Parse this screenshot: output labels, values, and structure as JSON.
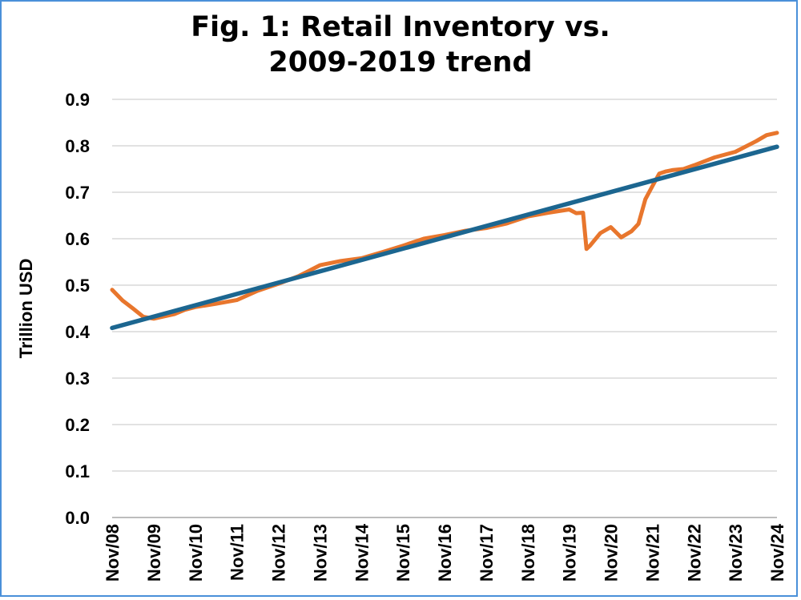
{
  "chart_data": {
    "type": "line",
    "title_lines": [
      "Fig. 1: Retail Inventory vs.",
      "2009-2019 trend"
    ],
    "ylabel": "Trillion USD",
    "xlabel": "",
    "ylim": [
      0,
      0.9
    ],
    "y_ticks": [
      "0.0",
      "0.1",
      "0.2",
      "0.3",
      "0.4",
      "0.5",
      "0.6",
      "0.7",
      "0.8",
      "0.9"
    ],
    "x_ticks": [
      "Nov/08",
      "Nov/09",
      "Nov/10",
      "Nov/11",
      "Nov/12",
      "Nov/13",
      "Nov/14",
      "Nov/15",
      "Nov/16",
      "Nov/17",
      "Nov/18",
      "Nov/19",
      "Nov/20",
      "Nov/21",
      "Nov/22",
      "Nov/23",
      "Nov/24"
    ],
    "grid": true,
    "legend": "none",
    "series": [
      {
        "color": "#e8762d",
        "x": [
          "Nov/08",
          "Feb/09",
          "May/09",
          "Aug/09",
          "Nov/09",
          "Feb/10",
          "May/10",
          "Aug/10",
          "Nov/10",
          "May/11",
          "Nov/11",
          "May/12",
          "Nov/12",
          "May/13",
          "Nov/13",
          "May/14",
          "Nov/14",
          "May/15",
          "Nov/15",
          "May/16",
          "Nov/16",
          "May/17",
          "Nov/17",
          "May/18",
          "Nov/18",
          "May/19",
          "Nov/19",
          "Jan/20",
          "Mar/20",
          "Apr/20",
          "May/20",
          "Aug/20",
          "Nov/20",
          "Feb/21",
          "May/21",
          "Jul/21",
          "Sep/21",
          "Nov/21",
          "Jan/22",
          "Mar/22",
          "May/22",
          "Aug/22",
          "Nov/22",
          "May/23",
          "Nov/23",
          "May/24",
          "Aug/24",
          "Nov/24"
        ],
        "values": [
          0.49,
          0.467,
          0.45,
          0.432,
          0.428,
          0.433,
          0.438,
          0.447,
          0.453,
          0.46,
          0.468,
          0.488,
          0.503,
          0.52,
          0.543,
          0.552,
          0.558,
          0.571,
          0.585,
          0.6,
          0.608,
          0.617,
          0.623,
          0.633,
          0.648,
          0.656,
          0.663,
          0.655,
          0.656,
          0.578,
          0.585,
          0.612,
          0.625,
          0.603,
          0.616,
          0.632,
          0.685,
          0.713,
          0.74,
          0.745,
          0.748,
          0.75,
          0.758,
          0.775,
          0.787,
          0.81,
          0.823,
          0.828
        ]
      },
      {
        "color": "#1c6690",
        "x": [
          "Nov/08",
          "Nov/24"
        ],
        "values": [
          0.408,
          0.798
        ]
      }
    ]
  }
}
